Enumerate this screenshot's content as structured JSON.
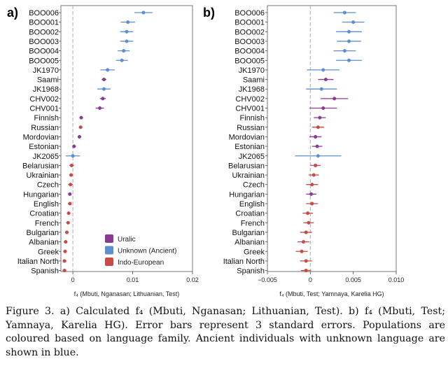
{
  "chart_data": [
    {
      "panel_label": "a)",
      "type": "scatter",
      "subtype": "dot-with-error-bars",
      "orientation": "horizontal",
      "populations": [
        "BOO006",
        "BOO001",
        "BOO002",
        "BOO003",
        "BOO004",
        "BOO005",
        "JK1970",
        "Saami",
        "JK1968",
        "CHV002",
        "CHV001",
        "Finnish",
        "Russian",
        "Mordovian",
        "Estonian",
        "JK2065",
        "Belarusian",
        "Ukrainian",
        "Czech",
        "Hungarian",
        "English",
        "Croatian",
        "French",
        "Bulgarian",
        "Albanian",
        "Greek",
        "Italian North",
        "Spanish"
      ],
      "groups": [
        "Unknown (Ancient)",
        "Unknown (Ancient)",
        "Unknown (Ancient)",
        "Unknown (Ancient)",
        "Unknown (Ancient)",
        "Unknown (Ancient)",
        "Unknown (Ancient)",
        "Uralic",
        "Unknown (Ancient)",
        "Uralic",
        "Uralic",
        "Uralic",
        "Indo-European",
        "Uralic",
        "Uralic",
        "Unknown (Ancient)",
        "Indo-European",
        "Indo-European",
        "Indo-European",
        "Uralic",
        "Indo-European",
        "Indo-European",
        "Indo-European",
        "Indo-European",
        "Indo-European",
        "Indo-European",
        "Indo-European",
        "Indo-European"
      ],
      "values": [
        0.0118,
        0.0092,
        0.009,
        0.009,
        0.0085,
        0.0082,
        0.0058,
        0.0052,
        0.0052,
        0.005,
        0.0045,
        0.0014,
        0.0013,
        0.0011,
        0.0002,
        0.0,
        -0.0002,
        -0.0003,
        -0.0004,
        -0.0005,
        -0.0005,
        -0.0007,
        -0.0008,
        -0.001,
        -0.0012,
        -0.0013,
        -0.0014,
        -0.0014
      ],
      "err": [
        0.0015,
        0.0012,
        0.0011,
        0.0011,
        0.001,
        0.001,
        0.0012,
        0.0004,
        0.0011,
        0.0005,
        0.0007,
        0.0003,
        0.0003,
        0.0003,
        0.0003,
        0.0012,
        0.0004,
        0.0003,
        0.0004,
        0.0003,
        0.0003,
        0.0003,
        0.0003,
        0.0003,
        0.0003,
        0.0003,
        0.0003,
        0.0003
      ],
      "xlim": [
        -0.002,
        0.02
      ],
      "xticks": [
        "0",
        "0.01",
        "0.02"
      ],
      "xtick_values": [
        0,
        0.01,
        0.02
      ],
      "xlabel": "f₄ (Mbuti, Nganasan; Lithuanian, Test)",
      "zero_line": true,
      "grid": false,
      "legend": {
        "placement": "bottom-right",
        "items": [
          {
            "label": "Uralic",
            "color": "#8b3a93"
          },
          {
            "label": "Unknown (Ancient)",
            "color": "#5b8fd0"
          },
          {
            "label": "Indo-European",
            "color": "#c84a45"
          }
        ]
      }
    },
    {
      "panel_label": "b)",
      "type": "scatter",
      "subtype": "dot-with-error-bars",
      "orientation": "horizontal",
      "populations": [
        "BOO006",
        "BOO001",
        "BOO002",
        "BOO003",
        "BOO004",
        "BOO005",
        "JK1970",
        "Saami",
        "JK1968",
        "CHV002",
        "CHV001",
        "Finnish",
        "Russian",
        "Mordovian",
        "Estonian",
        "JK2065",
        "Belarusian",
        "Ukrainian",
        "Czech",
        "Hungarian",
        "English",
        "Croatian",
        "French",
        "Bulgarian",
        "Albanian",
        "Greek",
        "Italian North",
        "Spanish"
      ],
      "groups": [
        "Unknown (Ancient)",
        "Unknown (Ancient)",
        "Unknown (Ancient)",
        "Unknown (Ancient)",
        "Unknown (Ancient)",
        "Unknown (Ancient)",
        "Unknown (Ancient)",
        "Uralic",
        "Unknown (Ancient)",
        "Uralic",
        "Uralic",
        "Uralic",
        "Indo-European",
        "Uralic",
        "Uralic",
        "Unknown (Ancient)",
        "Indo-European",
        "Indo-European",
        "Indo-European",
        "Uralic",
        "Indo-European",
        "Indo-European",
        "Indo-European",
        "Indo-European",
        "Indo-European",
        "Indo-European",
        "Indo-European",
        "Indo-European"
      ],
      "values": [
        0.004,
        0.005,
        0.0045,
        0.0045,
        0.004,
        0.0045,
        0.0015,
        0.0018,
        0.0013,
        0.0028,
        0.0015,
        0.0011,
        0.0009,
        0.0006,
        0.0008,
        0.0009,
        0.0006,
        0.0004,
        0.0002,
        0.0001,
        0.0002,
        -0.0003,
        -0.0002,
        -0.0005,
        -0.0008,
        -0.001,
        -0.0005,
        -0.0005
      ],
      "err": [
        0.0013,
        0.0013,
        0.0015,
        0.0014,
        0.0013,
        0.0015,
        0.0019,
        0.0009,
        0.0018,
        0.0016,
        0.0016,
        0.0007,
        0.0007,
        0.0007,
        0.0006,
        0.0027,
        0.0006,
        0.0006,
        0.0007,
        0.0006,
        0.0007,
        0.0006,
        0.0006,
        0.0007,
        0.0007,
        0.0007,
        0.0007,
        0.0006
      ],
      "xlim": [
        -0.005,
        0.01
      ],
      "xticks": [
        "−0.005",
        "0",
        "0.005",
        "0.010"
      ],
      "xtick_values": [
        -0.005,
        0,
        0.005,
        0.01
      ],
      "xlabel": "f₄ (Mbuti, Test; Yamnaya, Karelia HG)",
      "zero_line": true,
      "grid": false
    }
  ],
  "caption": "Figure 3. a) Calculated f₄ (Mbuti, Nganasan; Lithuanian, Test). b) f₄ (Mbuti, Test; Yamnaya, Karelia HG). Error bars represent 3 standard errors. Populations are coloured based on language family. Ancient individuals with unknown language are shown in blue.",
  "colors": {
    "Uralic": "#8b3a93",
    "Unknown (Ancient)": "#5b8fd0",
    "Indo-European": "#c84a45",
    "zero_line": "#aaaaaa",
    "frame": "#555555"
  }
}
